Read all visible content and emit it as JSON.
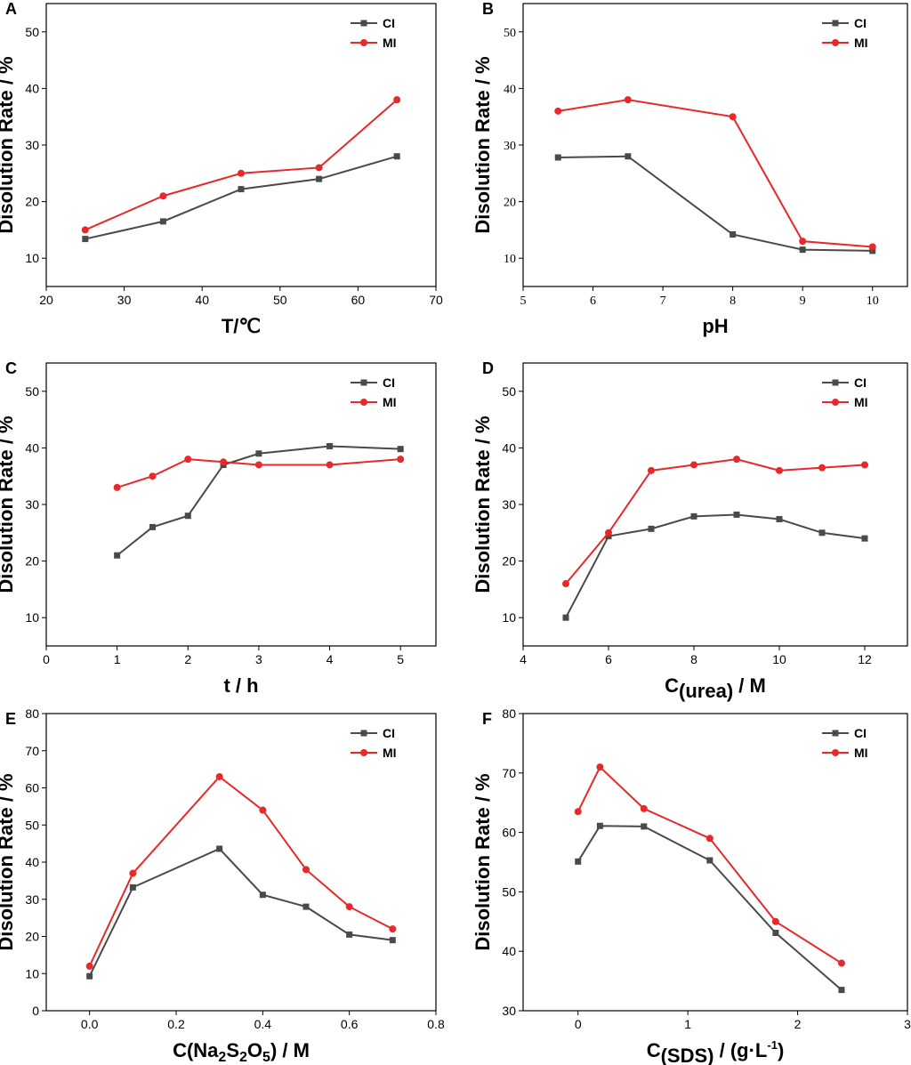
{
  "colors": {
    "CI": "#4a4a4a",
    "MI": "#e8282a",
    "axis": "#000000"
  },
  "chart_data": [
    {
      "panel": "A",
      "type": "line",
      "xlim": [
        20,
        70
      ],
      "ylim": [
        5,
        55
      ],
      "xticks": [
        20,
        30,
        40,
        50,
        60,
        70
      ],
      "yticks": [
        10,
        20,
        30,
        40,
        50
      ],
      "xlabel": "T/℃",
      "ylabel": "Disolution Rate / %",
      "legend": "top-right",
      "tick_font": "sans",
      "series": [
        {
          "name": "CI",
          "x": [
            25,
            35,
            45,
            55,
            65
          ],
          "y": [
            13.4,
            16.5,
            22.2,
            24,
            28
          ]
        },
        {
          "name": "MI",
          "x": [
            25,
            35,
            45,
            55,
            65
          ],
          "y": [
            15,
            21,
            25,
            26,
            38
          ]
        }
      ]
    },
    {
      "panel": "B",
      "type": "line",
      "xlim": [
        5,
        10.5
      ],
      "ylim": [
        5,
        55
      ],
      "xticks": [
        5,
        6,
        7,
        8,
        9,
        10
      ],
      "yticks": [
        10,
        20,
        30,
        40,
        50
      ],
      "xlabel": "pH",
      "ylabel": "Disolution Rate / %",
      "legend": "top-right",
      "tick_font": "serif",
      "series": [
        {
          "name": "CI",
          "x": [
            5.5,
            6.5,
            8,
            9,
            10
          ],
          "y": [
            27.8,
            28,
            14.2,
            11.5,
            11.3
          ]
        },
        {
          "name": "MI",
          "x": [
            5.5,
            6.5,
            8,
            9,
            10
          ],
          "y": [
            36,
            38,
            35,
            13,
            12
          ]
        }
      ]
    },
    {
      "panel": "C",
      "type": "line",
      "xlim": [
        0,
        5.5
      ],
      "ylim": [
        5,
        55
      ],
      "xticks": [
        0,
        1,
        2,
        3,
        4,
        5
      ],
      "yticks": [
        10,
        20,
        30,
        40,
        50
      ],
      "xlabel": "t / h",
      "ylabel": "Disolution Rate / %",
      "legend": "top-right",
      "tick_font": "sans",
      "series": [
        {
          "name": "CI",
          "x": [
            1,
            1.5,
            2,
            2.5,
            3,
            4,
            5
          ],
          "y": [
            21,
            26,
            28,
            37,
            39,
            40.3,
            39.8
          ]
        },
        {
          "name": "MI",
          "x": [
            1,
            1.5,
            2,
            2.5,
            3,
            4,
            5
          ],
          "y": [
            33,
            35,
            38,
            37.5,
            37,
            37,
            38
          ]
        }
      ]
    },
    {
      "panel": "D",
      "type": "line",
      "xlim": [
        4,
        13
      ],
      "ylim": [
        5,
        55
      ],
      "xticks": [
        4,
        6,
        8,
        10,
        12
      ],
      "yticks": [
        10,
        20,
        30,
        40,
        50
      ],
      "xlabel": "C",
      "xlabel_sub": "(urea)",
      "xlabel_rest": " / M",
      "ylabel": "Disolution Rate / %",
      "legend": "top-right",
      "tick_font": "sans",
      "series": [
        {
          "name": "CI",
          "x": [
            5,
            6,
            7,
            8,
            9,
            10,
            11,
            12
          ],
          "y": [
            10,
            24.4,
            25.7,
            27.9,
            28.2,
            27.4,
            25,
            24
          ]
        },
        {
          "name": "MI",
          "x": [
            5,
            6,
            7,
            8,
            9,
            10,
            11,
            12
          ],
          "y": [
            16,
            25,
            36,
            37,
            38,
            36,
            36.5,
            37
          ]
        }
      ]
    },
    {
      "panel": "E",
      "type": "line",
      "xlim": [
        -0.1,
        0.8
      ],
      "ylim": [
        0,
        80
      ],
      "xticks": [
        "0.0",
        "0.2",
        "0.4",
        "0.6",
        "0.8"
      ],
      "yticks": [
        0,
        10,
        20,
        30,
        40,
        50,
        60,
        70,
        80
      ],
      "xlabel": "C(Na",
      "xlabel_s1": "2",
      "xlabel_m1": "S",
      "xlabel_s2": "2",
      "xlabel_m2": "O",
      "xlabel_s3": "5",
      "xlabel_rest": ") / M",
      "ylabel": "Disolution Rate / %",
      "legend": "top-right",
      "tick_font": "sans",
      "series": [
        {
          "name": "CI",
          "x": [
            0,
            0.1,
            0.3,
            0.4,
            0.5,
            0.6,
            0.7
          ],
          "y": [
            9.3,
            33.2,
            43.6,
            31.2,
            28,
            20.5,
            19
          ]
        },
        {
          "name": "MI",
          "x": [
            0,
            0.1,
            0.3,
            0.4,
            0.5,
            0.6,
            0.7
          ],
          "y": [
            12,
            37,
            63,
            54,
            38,
            28,
            22
          ]
        }
      ]
    },
    {
      "panel": "F",
      "type": "line",
      "xlim": [
        -0.5,
        3
      ],
      "ylim": [
        30,
        80
      ],
      "xticks": [
        0,
        1,
        2,
        3
      ],
      "yticks": [
        30,
        40,
        50,
        60,
        70,
        80
      ],
      "xlabel": "C",
      "xlabel_sub": "(SDS)",
      "xlabel_rest": " / (g·L",
      "xlabel_sup": "-1",
      "xlabel_end": ")",
      "ylabel": "Disolution Rate / %",
      "legend": "top-right",
      "tick_font": "sans",
      "series": [
        {
          "name": "CI",
          "x": [
            0,
            0.2,
            0.6,
            1.2,
            1.8,
            2.4
          ],
          "y": [
            55.1,
            61.1,
            61,
            55.3,
            43.1,
            33.5
          ]
        },
        {
          "name": "MI",
          "x": [
            0,
            0.2,
            0.6,
            1.2,
            1.8,
            2.4
          ],
          "y": [
            63.5,
            71,
            64,
            59,
            45,
            38
          ]
        }
      ]
    }
  ]
}
